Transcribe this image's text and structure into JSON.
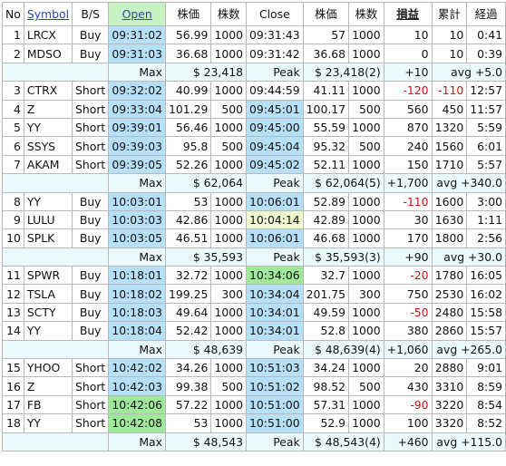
{
  "headers": [
    "No",
    "Symbol",
    "B/S",
    "Open",
    "株価",
    "株数",
    "Close",
    "株価",
    "株数",
    "損益",
    "累計",
    "経過"
  ],
  "groups": [
    {
      "rows": [
        {
          "no": "1",
          "sym": "LRCX",
          "bs": "Buy",
          "open": "09:31:02",
          "op": "56.99",
          "oq": "1000",
          "close": "09:31:43",
          "cp": "57",
          "cq": "1000",
          "pl": "10",
          "cum": "10",
          "el": "0:41",
          "open_bg": "b",
          "close_bg": ""
        },
        {
          "no": "2",
          "sym": "MDSO",
          "bs": "Buy",
          "open": "09:31:03",
          "op": "36.68",
          "oq": "1000",
          "close": "09:31:42",
          "cp": "36.68",
          "cq": "1000",
          "pl": "0",
          "cum": "10",
          "el": "0:39",
          "open_bg": "b",
          "close_bg": ""
        }
      ],
      "summary": {
        "max_label": "Max",
        "max": "$ 23,418",
        "peak_label": "Peak",
        "peak": "$ 23,418(2)",
        "pl": "+10",
        "avg": "avg +5.0"
      }
    },
    {
      "rows": [
        {
          "no": "3",
          "sym": "CTRX",
          "bs": "Short",
          "open": "09:32:02",
          "op": "40.99",
          "oq": "1000",
          "close": "09:44:59",
          "cp": "41.11",
          "cq": "1000",
          "pl": "-120",
          "cum": "-110",
          "el": "12:57",
          "open_bg": "b",
          "close_bg": ""
        },
        {
          "no": "4",
          "sym": "Z",
          "bs": "Short",
          "open": "09:33:04",
          "op": "101.29",
          "oq": "500",
          "close": "09:45:01",
          "cp": "100.17",
          "cq": "500",
          "pl": "560",
          "cum": "450",
          "el": "11:57",
          "open_bg": "b",
          "close_bg": "b"
        },
        {
          "no": "5",
          "sym": "YY",
          "bs": "Short",
          "open": "09:39:01",
          "op": "56.46",
          "oq": "1000",
          "close": "09:45:00",
          "cp": "55.59",
          "cq": "1000",
          "pl": "870",
          "cum": "1320",
          "el": "5:59",
          "open_bg": "b",
          "close_bg": "b"
        },
        {
          "no": "6",
          "sym": "SSYS",
          "bs": "Short",
          "open": "09:39:03",
          "op": "95.8",
          "oq": "500",
          "close": "09:45:04",
          "cp": "95.32",
          "cq": "500",
          "pl": "240",
          "cum": "1560",
          "el": "6:01",
          "open_bg": "b",
          "close_bg": "b"
        },
        {
          "no": "7",
          "sym": "AKAM",
          "bs": "Short",
          "open": "09:39:05",
          "op": "52.26",
          "oq": "1000",
          "close": "09:45:02",
          "cp": "52.11",
          "cq": "1000",
          "pl": "150",
          "cum": "1710",
          "el": "5:57",
          "open_bg": "b",
          "close_bg": "b"
        }
      ],
      "summary": {
        "max_label": "Max",
        "max": "$ 62,064",
        "peak_label": "Peak",
        "peak": "$ 62,064(5)",
        "pl": "+1,700",
        "avg": "avg +340.0"
      }
    },
    {
      "rows": [
        {
          "no": "8",
          "sym": "YY",
          "bs": "Buy",
          "open": "10:03:01",
          "op": "53",
          "oq": "1000",
          "close": "10:06:01",
          "cp": "52.89",
          "cq": "1000",
          "pl": "-110",
          "cum": "1600",
          "el": "3:00",
          "open_bg": "b",
          "close_bg": "b"
        },
        {
          "no": "9",
          "sym": "LULU",
          "bs": "Buy",
          "open": "10:03:03",
          "op": "42.86",
          "oq": "1000",
          "close": "10:04:14",
          "cp": "42.89",
          "cq": "1000",
          "pl": "30",
          "cum": "1630",
          "el": "1:11",
          "open_bg": "b",
          "close_bg": "y"
        },
        {
          "no": "10",
          "sym": "SPLK",
          "bs": "Buy",
          "open": "10:03:05",
          "op": "46.51",
          "oq": "1000",
          "close": "10:06:01",
          "cp": "46.68",
          "cq": "1000",
          "pl": "170",
          "cum": "1800",
          "el": "2:56",
          "open_bg": "b",
          "close_bg": "b"
        }
      ],
      "summary": {
        "max_label": "Max",
        "max": "$ 35,593",
        "peak_label": "Peak",
        "peak": "$ 35,593(3)",
        "pl": "+90",
        "avg": "avg +30.0"
      }
    },
    {
      "rows": [
        {
          "no": "11",
          "sym": "SPWR",
          "bs": "Buy",
          "open": "10:18:01",
          "op": "32.72",
          "oq": "1000",
          "close": "10:34:06",
          "cp": "32.7",
          "cq": "1000",
          "pl": "-20",
          "cum": "1780",
          "el": "16:05",
          "open_bg": "b",
          "close_bg": "gd"
        },
        {
          "no": "12",
          "sym": "TSLA",
          "bs": "Buy",
          "open": "10:18:02",
          "op": "199.25",
          "oq": "300",
          "close": "10:34:04",
          "cp": "201.75",
          "cq": "300",
          "pl": "750",
          "cum": "2530",
          "el": "16:02",
          "open_bg": "b",
          "close_bg": "b"
        },
        {
          "no": "13",
          "sym": "SCTY",
          "bs": "Buy",
          "open": "10:18:03",
          "op": "49.64",
          "oq": "1000",
          "close": "10:34:01",
          "cp": "49.59",
          "cq": "1000",
          "pl": "-50",
          "cum": "2480",
          "el": "15:58",
          "open_bg": "b",
          "close_bg": "b"
        },
        {
          "no": "14",
          "sym": "YY",
          "bs": "Buy",
          "open": "10:18:04",
          "op": "52.42",
          "oq": "1000",
          "close": "10:34:01",
          "cp": "52.8",
          "cq": "1000",
          "pl": "380",
          "cum": "2860",
          "el": "15:57",
          "open_bg": "b",
          "close_bg": "b"
        }
      ],
      "summary": {
        "max_label": "Max",
        "max": "$ 48,639",
        "peak_label": "Peak",
        "peak": "$ 48,639(4)",
        "pl": "+1,060",
        "avg": "avg +265.0"
      }
    },
    {
      "rows": [
        {
          "no": "15",
          "sym": "YHOO",
          "bs": "Short",
          "open": "10:42:02",
          "op": "34.26",
          "oq": "1000",
          "close": "10:51:03",
          "cp": "34.24",
          "cq": "1000",
          "pl": "20",
          "cum": "2880",
          "el": "9:01",
          "open_bg": "b",
          "close_bg": "b"
        },
        {
          "no": "16",
          "sym": "Z",
          "bs": "Short",
          "open": "10:42:03",
          "op": "99.38",
          "oq": "500",
          "close": "10:51:02",
          "cp": "98.52",
          "cq": "500",
          "pl": "430",
          "cum": "3310",
          "el": "8:59",
          "open_bg": "b",
          "close_bg": "b"
        },
        {
          "no": "17",
          "sym": "FB",
          "bs": "Short",
          "open": "10:42:06",
          "op": "57.22",
          "oq": "1000",
          "close": "10:51:00",
          "cp": "57.31",
          "cq": "1000",
          "pl": "-90",
          "cum": "3220",
          "el": "8:54",
          "open_bg": "gd",
          "close_bg": "b"
        },
        {
          "no": "18",
          "sym": "YY",
          "bs": "Short",
          "open": "10:42:08",
          "op": "53",
          "oq": "1000",
          "close": "10:51:00",
          "cp": "52.9",
          "cq": "1000",
          "pl": "100",
          "cum": "3320",
          "el": "8:52",
          "open_bg": "gd",
          "close_bg": "b"
        }
      ],
      "summary": {
        "max_label": "Max",
        "max": "$ 48,543",
        "peak_label": "Peak",
        "peak": "$ 48,543(4)",
        "pl": "+460",
        "avg": "avg +115.0"
      }
    }
  ]
}
